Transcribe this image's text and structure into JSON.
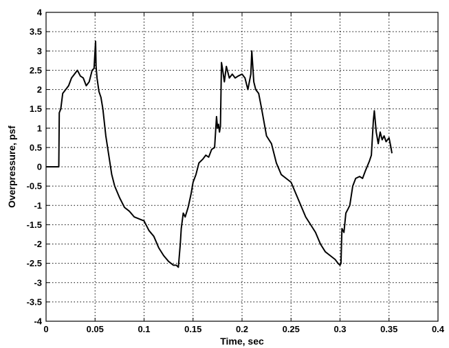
{
  "chart_data": {
    "type": "line",
    "title": "",
    "xlabel": "Time, sec",
    "ylabel": "Overpressure, psf",
    "xlim": [
      0,
      0.4
    ],
    "ylim": [
      -4,
      4
    ],
    "xticks": [
      0,
      0.05,
      0.1,
      0.15,
      0.2,
      0.25,
      0.3,
      0.35,
      0.4
    ],
    "xtick_labels": [
      "0",
      "0.05",
      "0.1",
      "0.15",
      "0.2",
      "0.25",
      "0.3",
      "0.35",
      "0.4"
    ],
    "yticks": [
      -4,
      -3.5,
      -3,
      -2.5,
      -2,
      -1.5,
      -1,
      -0.5,
      0,
      0.5,
      1,
      1.5,
      2,
      2.5,
      3,
      3.5,
      4
    ],
    "ytick_labels": [
      "-4",
      "-3.5",
      "-3",
      "-2.5",
      "-2",
      "-1.5",
      "-1",
      "-0.5",
      "0",
      "0.5",
      "1",
      "1.5",
      "2",
      "2.5",
      "3",
      "3.5",
      "4"
    ],
    "grid": true,
    "line_color": "#000000",
    "series": [
      {
        "x": [
          0,
          0.013,
          0.0135,
          0.015,
          0.017,
          0.02,
          0.023,
          0.026,
          0.029,
          0.032,
          0.035,
          0.038,
          0.041,
          0.044,
          0.047,
          0.049,
          0.0505,
          0.051,
          0.052,
          0.054,
          0.056,
          0.058,
          0.061,
          0.064,
          0.067,
          0.07,
          0.075,
          0.08,
          0.085,
          0.09,
          0.095,
          0.1,
          0.105,
          0.11,
          0.115,
          0.12,
          0.125,
          0.13,
          0.133,
          0.135,
          0.137,
          0.138,
          0.14,
          0.142,
          0.145,
          0.148,
          0.15,
          0.153,
          0.156,
          0.16,
          0.163,
          0.166,
          0.169,
          0.172,
          0.174,
          0.175,
          0.176,
          0.177,
          0.178,
          0.179,
          0.18,
          0.182,
          0.184,
          0.187,
          0.19,
          0.193,
          0.196,
          0.2,
          0.203,
          0.206,
          0.209,
          0.21,
          0.212,
          0.214,
          0.217,
          0.22,
          0.225,
          0.23,
          0.235,
          0.24,
          0.245,
          0.25,
          0.255,
          0.26,
          0.265,
          0.27,
          0.275,
          0.28,
          0.285,
          0.29,
          0.295,
          0.298,
          0.3,
          0.301,
          0.302,
          0.304,
          0.306,
          0.308,
          0.31,
          0.313,
          0.316,
          0.32,
          0.323,
          0.326,
          0.33,
          0.332,
          0.334,
          0.335,
          0.337,
          0.339,
          0.341,
          0.343,
          0.345,
          0.347,
          0.35,
          0.352,
          0.353
        ],
        "y": [
          0,
          0,
          1.4,
          1.5,
          1.9,
          2.0,
          2.1,
          2.3,
          2.4,
          2.5,
          2.35,
          2.3,
          2.1,
          2.2,
          2.5,
          2.55,
          3.25,
          2.6,
          2.3,
          1.95,
          1.8,
          1.5,
          0.8,
          0.3,
          -0.2,
          -0.5,
          -0.8,
          -1.05,
          -1.15,
          -1.3,
          -1.35,
          -1.4,
          -1.65,
          -1.8,
          -2.1,
          -2.3,
          -2.45,
          -2.55,
          -2.55,
          -2.6,
          -2.0,
          -1.6,
          -1.2,
          -1.3,
          -1.05,
          -0.7,
          -0.4,
          -0.2,
          0.1,
          0.2,
          0.3,
          0.25,
          0.45,
          0.5,
          1.3,
          1.0,
          1.1,
          0.9,
          1.05,
          2.7,
          2.55,
          2.2,
          2.6,
          2.3,
          2.4,
          2.3,
          2.35,
          2.4,
          2.3,
          2.0,
          2.4,
          3.0,
          2.2,
          2.0,
          1.9,
          1.5,
          0.8,
          0.6,
          0.1,
          -0.2,
          -0.3,
          -0.4,
          -0.7,
          -1.0,
          -1.3,
          -1.5,
          -1.7,
          -2.0,
          -2.2,
          -2.3,
          -2.4,
          -2.5,
          -2.55,
          -2.5,
          -1.6,
          -1.7,
          -1.2,
          -1.1,
          -1.0,
          -0.5,
          -0.3,
          -0.25,
          -0.3,
          -0.1,
          0.15,
          0.3,
          1.2,
          1.45,
          0.9,
          0.6,
          0.9,
          0.7,
          0.8,
          0.65,
          0.75,
          0.5,
          0.35
        ]
      }
    ]
  }
}
